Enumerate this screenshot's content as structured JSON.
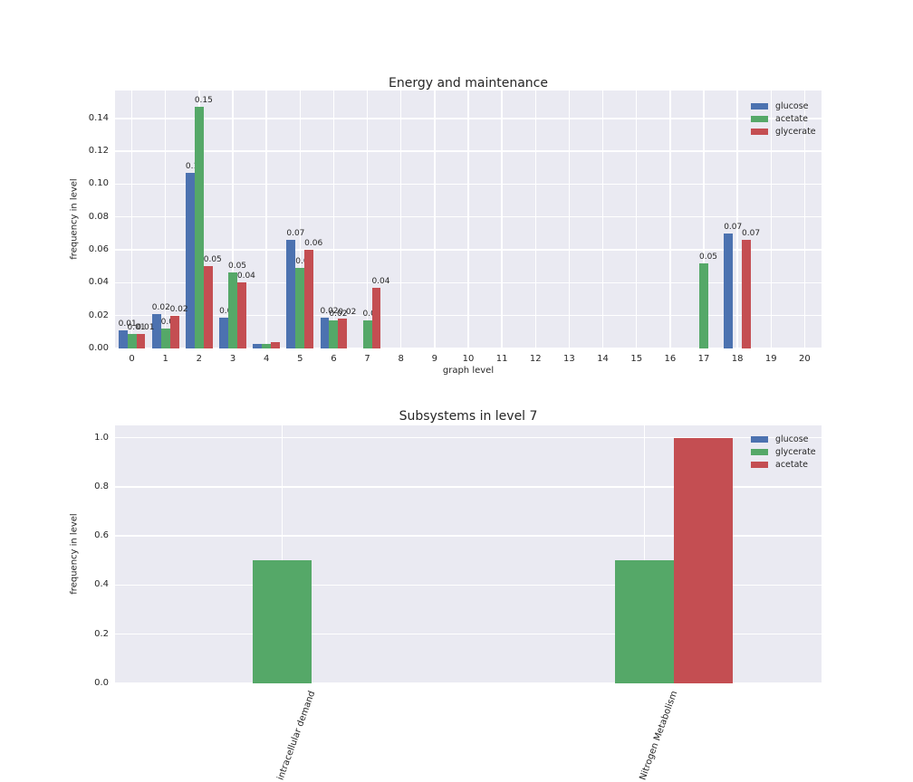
{
  "figure_background": "#ffffff",
  "plot_background": "#eaeaf2",
  "grid_color": "#ffffff",
  "text_color": "#262626",
  "chart_data": [
    {
      "type": "bar",
      "title": "Energy and maintenance",
      "xlabel": "graph level",
      "ylabel": "frequency in level",
      "categories": [
        "0",
        "1",
        "2",
        "3",
        "4",
        "5",
        "6",
        "7",
        "8",
        "9",
        "10",
        "11",
        "12",
        "13",
        "14",
        "15",
        "16",
        "17",
        "18",
        "19",
        "20"
      ],
      "ylim": [
        0,
        0.157
      ],
      "grid": true,
      "legend_position": "upper right",
      "yticks": [
        {
          "value": 0.0,
          "label": "0.00"
        },
        {
          "value": 0.02,
          "label": "0.02"
        },
        {
          "value": 0.04,
          "label": "0.04"
        },
        {
          "value": 0.06,
          "label": "0.06"
        },
        {
          "value": 0.08,
          "label": "0.08"
        },
        {
          "value": 0.1,
          "label": "0.10"
        },
        {
          "value": 0.12,
          "label": "0.12"
        },
        {
          "value": 0.14,
          "label": "0.14"
        }
      ],
      "series": [
        {
          "name": "glucose",
          "color": "#4c72b0",
          "values": [
            0.011,
            0.021,
            0.107,
            0.019,
            0.003,
            0.066,
            0.019,
            0,
            0,
            0,
            0,
            0,
            0,
            0,
            0,
            0,
            0,
            0,
            0.07,
            0,
            0
          ],
          "bar_labels": [
            "0.01",
            "0.02",
            "0.11",
            "0.02",
            "",
            "0.07",
            "0.02",
            "",
            "",
            "",
            "",
            "",
            "",
            "",
            "",
            "",
            "",
            "",
            "0.07",
            "",
            ""
          ]
        },
        {
          "name": "acetate",
          "color": "#55a868",
          "values": [
            0.009,
            0.012,
            0.147,
            0.046,
            0.003,
            0.049,
            0.017,
            0.017,
            0,
            0,
            0,
            0,
            0,
            0,
            0,
            0,
            0,
            0.052,
            0,
            0,
            0
          ],
          "bar_labels": [
            "0.01",
            "0.01",
            "0.15",
            "0.05",
            "",
            "0.05",
            "0.02",
            "0.02",
            "",
            "",
            "",
            "",
            "",
            "",
            "",
            "",
            "",
            "0.05",
            "",
            "",
            ""
          ]
        },
        {
          "name": "glycerate",
          "color": "#c44e52",
          "values": [
            0.009,
            0.02,
            0.05,
            0.04,
            0.004,
            0.06,
            0.018,
            0.037,
            0,
            0,
            0,
            0,
            0,
            0,
            0,
            0,
            0,
            0,
            0.066,
            0,
            0
          ],
          "bar_labels": [
            "0.01",
            "0.02",
            "0.05",
            "0.04",
            "",
            "0.06",
            "0.02",
            "0.04",
            "",
            "",
            "",
            "",
            "",
            "",
            "",
            "",
            "",
            "",
            "0.07",
            "",
            ""
          ]
        }
      ],
      "legend": [
        {
          "label": "glucose",
          "color": "#4c72b0"
        },
        {
          "label": "acetate",
          "color": "#55a868"
        },
        {
          "label": "glycerate",
          "color": "#c44e52"
        }
      ]
    },
    {
      "type": "bar",
      "title": "Subsystems in level 7",
      "xlabel": "",
      "ylabel": "frequency in level",
      "categories": [
        "intracellular demand",
        "Nitrogen Metabolism"
      ],
      "ylim": [
        0,
        1.05
      ],
      "grid": true,
      "legend_position": "upper right",
      "yticks": [
        {
          "value": 0.0,
          "label": "0.0"
        },
        {
          "value": 0.2,
          "label": "0.2"
        },
        {
          "value": 0.4,
          "label": "0.4"
        },
        {
          "value": 0.6,
          "label": "0.6"
        },
        {
          "value": 0.8,
          "label": "0.8"
        },
        {
          "value": 1.0,
          "label": "1.0"
        }
      ],
      "series": [
        {
          "name": "glucose",
          "color": "#4c72b0",
          "values": [
            0,
            0
          ],
          "bar_labels": [
            "",
            ""
          ]
        },
        {
          "name": "glycerate",
          "color": "#55a868",
          "values": [
            0.5,
            0.5
          ],
          "bar_labels": [
            "",
            ""
          ]
        },
        {
          "name": "acetate",
          "color": "#c44e52",
          "values": [
            0,
            1.0
          ],
          "bar_labels": [
            "",
            ""
          ]
        }
      ],
      "legend": [
        {
          "label": "glucose",
          "color": "#4c72b0"
        },
        {
          "label": "glycerate",
          "color": "#55a868"
        },
        {
          "label": "acetate",
          "color": "#c44e52"
        }
      ]
    }
  ]
}
